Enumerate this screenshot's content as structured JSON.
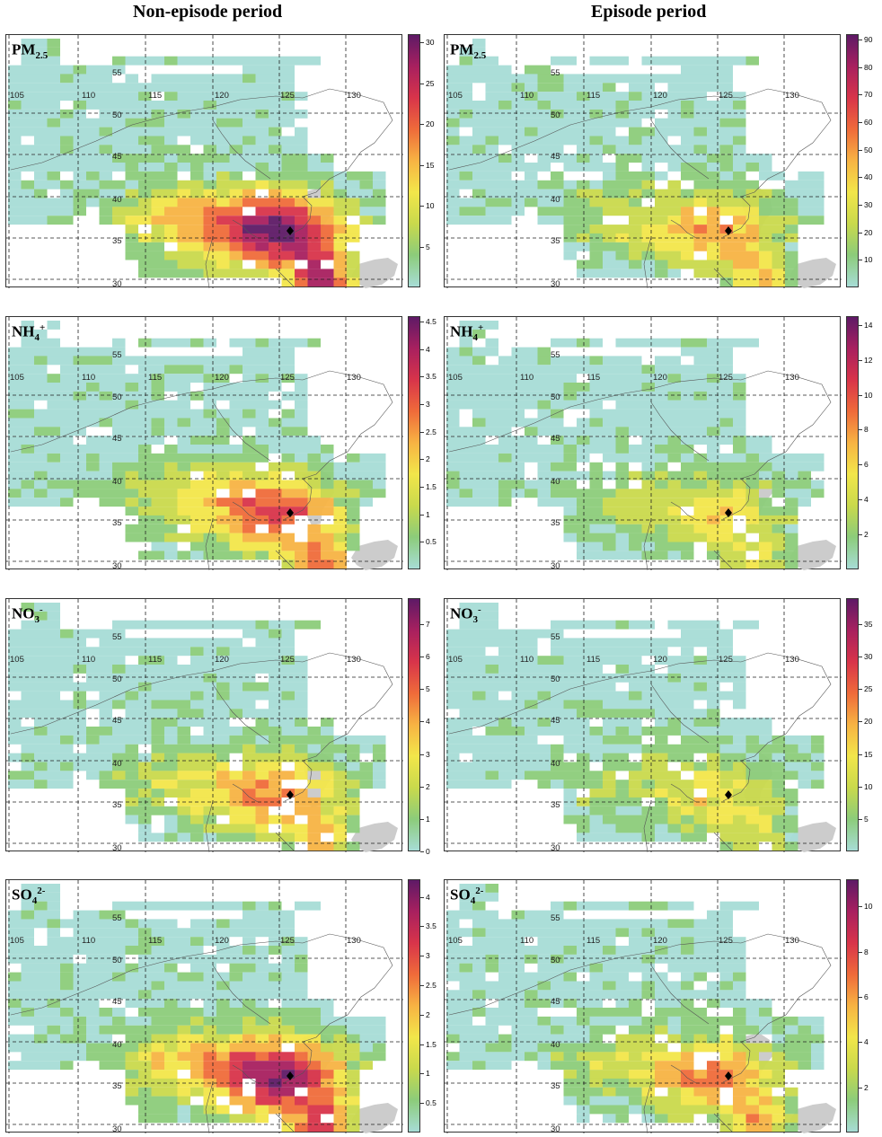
{
  "columns": [
    "Non-episode period",
    "Episode period"
  ],
  "longitude_labels": [
    "105",
    "110",
    "115",
    "120",
    "125",
    "130"
  ],
  "latitude_labels": [
    "55",
    "50",
    "45",
    "40",
    "35",
    "30"
  ],
  "marker": "diamond-icon",
  "colorscale": [
    "#a7dcd6",
    "#8ccc7a",
    "#c9d94c",
    "#f2e64a",
    "#f7b343",
    "#ef6b3a",
    "#d8344a",
    "#a8205f",
    "#5e1a66"
  ],
  "land_mask_color": "#cccccc",
  "panels": [
    {
      "id": "pm25-non",
      "species": "PM",
      "sub": "2.5",
      "sup": "",
      "ticks": [
        "30",
        "25",
        "20",
        "15",
        "10",
        "5"
      ],
      "max": 31,
      "intensity": 1.0
    },
    {
      "id": "pm25-ep",
      "species": "PM",
      "sub": "2.5",
      "sup": "",
      "ticks": [
        "90",
        "80",
        "70",
        "60",
        "50",
        "40",
        "30",
        "20",
        "10"
      ],
      "max": 92,
      "intensity": 0.55
    },
    {
      "id": "nh4-non",
      "species": "NH",
      "sub": "4",
      "sup": "+",
      "ticks": [
        "4.5",
        "4",
        "3.5",
        "3",
        "2.5",
        "2",
        "1.5",
        "1",
        "0.5"
      ],
      "max": 4.6,
      "intensity": 0.72
    },
    {
      "id": "nh4-ep",
      "species": "NH",
      "sub": "4",
      "sup": "+",
      "ticks": [
        "14",
        "12",
        "10",
        "8",
        "6",
        "4",
        "2"
      ],
      "max": 14.5,
      "intensity": 0.4
    },
    {
      "id": "no3-non",
      "species": "NO",
      "sub": "3",
      "sup": "-",
      "ticks": [
        "7",
        "6",
        "5",
        "4",
        "3",
        "2",
        "1",
        "0"
      ],
      "max": 7.8,
      "intensity": 0.62
    },
    {
      "id": "no3-ep",
      "species": "NO",
      "sub": "3",
      "sup": "-",
      "ticks": [
        "35",
        "30",
        "25",
        "20",
        "15",
        "10",
        "5"
      ],
      "max": 39,
      "intensity": 0.38
    },
    {
      "id": "so4-non",
      "species": "SO",
      "sub": "4",
      "sup": "2-",
      "ticks": [
        "4",
        "3.5",
        "3",
        "2.5",
        "2",
        "1.5",
        "1",
        "0.5"
      ],
      "max": 4.3,
      "intensity": 0.95
    },
    {
      "id": "so4-ep",
      "species": "SO",
      "sub": "4",
      "sup": "2-",
      "ticks": [
        "10",
        "8",
        "6",
        "4",
        "2"
      ],
      "max": 11.2,
      "intensity": 0.6
    }
  ]
}
